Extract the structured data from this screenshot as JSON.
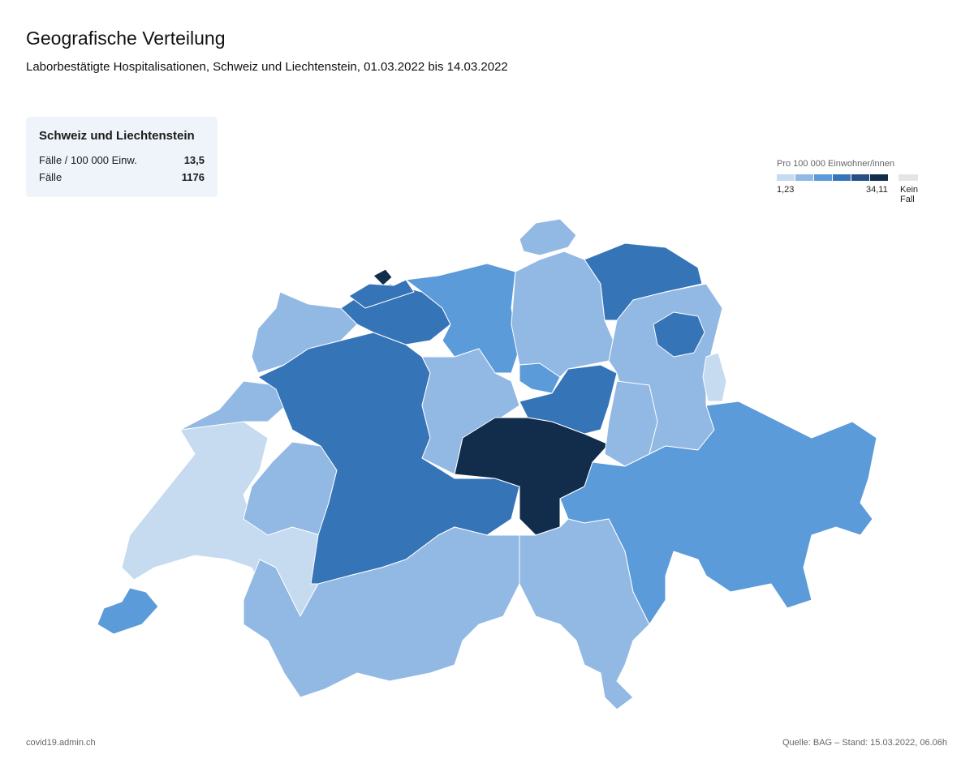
{
  "header": {
    "title": "Geografische Verteilung",
    "subtitle": "Laborbestätigte Hospitalisationen, Schweiz und Liechtenstein, 01.03.2022 bis 14.03.2022"
  },
  "summary": {
    "title": "Schweiz und Liechtenstein",
    "rows": [
      {
        "label": "Fälle / 100 000 Einw.",
        "value": "13,5"
      },
      {
        "label": "Fälle",
        "value": "1176"
      }
    ]
  },
  "legend": {
    "label": "Pro 100 000 Einwohner/innen",
    "min": "1,23",
    "max": "34,11",
    "none_label": "Kein Fall",
    "colors": [
      "#c6daf0",
      "#92b9e3",
      "#5b9bd9",
      "#3674b8",
      "#264f85",
      "#122d4c"
    ],
    "none_color": "#e5e5e5"
  },
  "colors": {
    "c1": "#c6daf0",
    "c2": "#92b9e3",
    "c3": "#5b9bd9",
    "c4": "#3674b8",
    "c5": "#264f85",
    "c6": "#122d4c"
  },
  "footer": {
    "left": "covid19.admin.ch",
    "right": "Quelle: BAG – Stand: 15.03.2022, 06.06h"
  }
}
